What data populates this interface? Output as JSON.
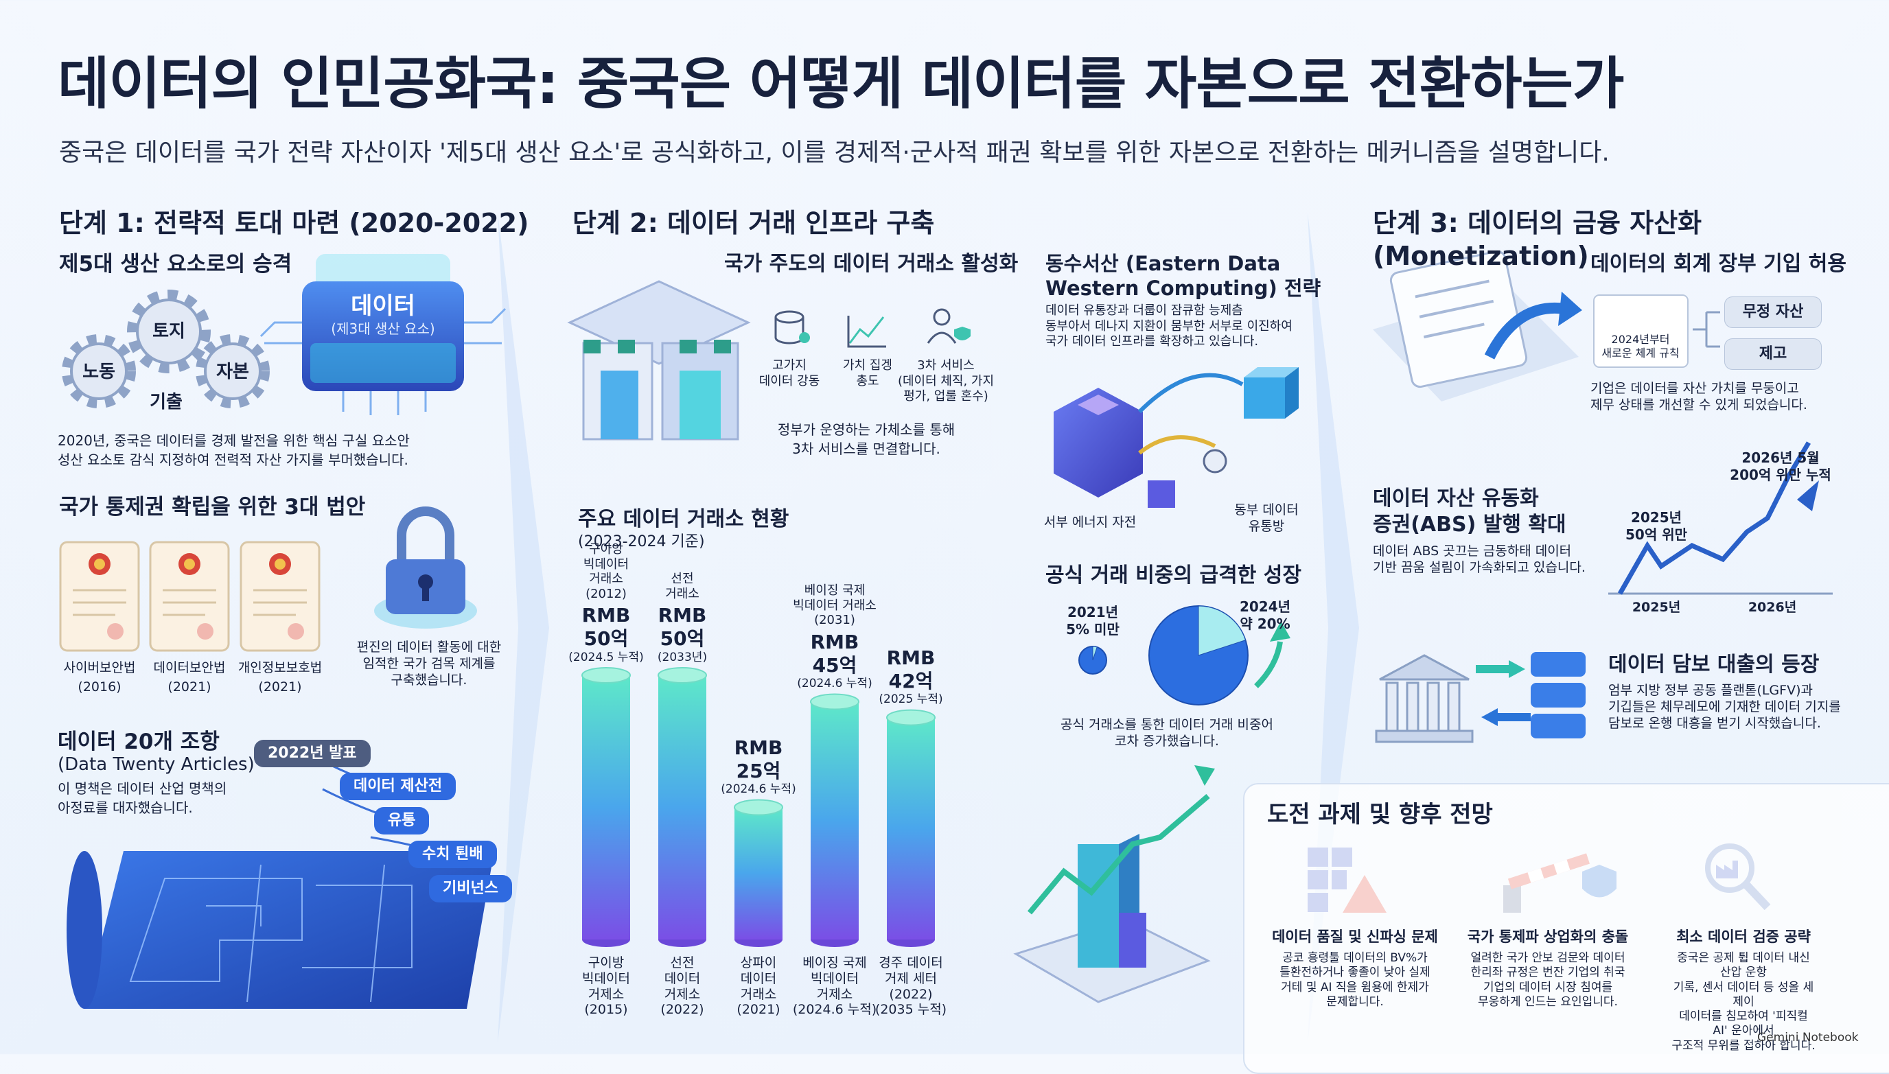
{
  "header": {
    "title": "데이터의 인민공화국: 중국은 어떻게 데이터를 자본으로 전환하는가",
    "subtitle": "중국은 데이터를 국가 전략 자산이자 '제5대 생산 요소'로 공식화하고, 이를 경제적·군사적 패권 확보를 위한 자본으로 전환하는 메커니즘을 설명합니다."
  },
  "stage1": {
    "heading": "단계 1: 전략적 토대 마련 (2020-2022)",
    "factors": {
      "heading": "제5대 생산 요소로의 승격",
      "gears": [
        "토지",
        "노동",
        "자본",
        "기출"
      ],
      "chip_title": "데이터",
      "chip_sub": "(제3대 생산 요소)",
      "text": "2020년, 중국은 데이터를 경제 발전을 위한 핵심 구실 요소안\n성산 요소토 감식 지정하여 전력적 자산 가지를 부머했습니다."
    },
    "laws": {
      "heading": "국가 통제권 확립을 위한 3대 법안",
      "items": [
        {
          "name": "사이버보안법",
          "year": "(2016)"
        },
        {
          "name": "데이터보안법",
          "year": "(2021)"
        },
        {
          "name": "개인정보보호법",
          "year": "(2021)"
        }
      ],
      "lock_text": "편진의 데이터 활동에 대한\n임적한 국가 검목 제계를\n구축했습니다."
    },
    "articles": {
      "heading": "데이터 20개 조항",
      "subheading": "(Data Twenty Articles)",
      "text": "이 명책은 데이터 산업 명책의\n아정료를 대자했습니다.",
      "badge": "2022년 발표",
      "tags": [
        "데이터 제산전",
        "유통",
        "수치 퇸배",
        "기비넌스"
      ]
    }
  },
  "stage2": {
    "heading": "단계 2: 데이터 거래 인프라 구축",
    "exchange": {
      "heading": "국가 주도의 데이터 거래소 활성화",
      "icons": [
        "고가지\n데이터 강동",
        "가치 집겡\n총도",
        "3차 서비스\n(데이터 체직, 가지\n펑가, 업룰 혼수)"
      ],
      "text": "정부가 운영하는 가체소를 통해\n3차 서비스를 면결합니다."
    },
    "chart": {
      "title": "주요 데이터 거래소 현황",
      "period": "(2023-2024 기준)",
      "bars": [
        {
          "top_label": "구아앙\n빅데이터\n거래소\n(2012)",
          "value": 50,
          "value_label": "RMB\n50억",
          "note": "(2024.5 누적)",
          "bottom_label": "구이방\n빅데이터\n거제소\n(2015)"
        },
        {
          "top_label": "선전\n거래소",
          "value": 50,
          "value_label": "RMB\n50억",
          "note": "(2033년)",
          "bottom_label": "선전\n데이터\n거제소\n(2022)"
        },
        {
          "value": 25,
          "value_label": "RMB\n25억",
          "note": "(2024.6 누적)",
          "bottom_label": "상파이\n데이터\n거래소\n(2021)"
        },
        {
          "top_label": "베이징 국제\n빅데이터 거래소\n(2031)",
          "value": 45,
          "value_label": "RMB\n45억",
          "note": "(2024.6 누적)",
          "bottom_label": "베이징 국제\n빅데이터\n거제소\n(2024.6 누적)"
        },
        {
          "value": 42,
          "value_label": "RMB\n42억",
          "note": "(2025 누적)",
          "bottom_label": "경주 데이터\n거제 세터\n(2022)\n(2035 누적)"
        }
      ]
    },
    "east_west": {
      "heading": "동수서산 (Eastern Data\nWestern Computing) 전략",
      "text": "데이터 유통장과 더룹이 잠큐함 능제츰\n동부아서 데나지 지환이 뭄부한 서부로 이진하여\n국가 데이터 인프라를 확장하고 있습니다.",
      "west_label": "서부 에너지 자전",
      "east_label": "동부 데이터\n유통방"
    },
    "growth": {
      "heading": "공식 거래 비중의 급격한 성장",
      "points": [
        {
          "label": "2021년\n5% 미만",
          "value": 5
        },
        {
          "label": "2024년\n약 20%",
          "value": 20
        }
      ],
      "text": "공식 거래소를 통한 데이터 거래 비중어\n코차 증가했습니다."
    }
  },
  "stage3": {
    "heading": "단계 3: 데이터의 금융 자산화 (Monetization)",
    "accounting": {
      "heading": "데이터의 회계 장부 기입 허용",
      "box": "2024년부터\n새로운 체계 규칙",
      "chips": [
        "무정 자산",
        "제고"
      ],
      "text": "기업은 데이터를 자산 가치를 무둥이고\n제무 상태를 개선할 수 있게 되었습니다."
    },
    "abs": {
      "heading": "데이터 자산 유동화\n증권(ABS) 발행 확대",
      "text": "데이터 ABS 곳끄는 금동하태 데이터\n기반 끔움 설림이 가속화되고 있습니다.",
      "note_2025": "2025년\n50억 위만",
      "note_2026": "2026년 5월\n200억 위만 누적",
      "x_labels": [
        "2025년",
        "2026년"
      ]
    },
    "loan": {
      "heading": "데이터 담보 대출의 등장",
      "text": "엄부 지방 정부 공동 플랜톧(LGFV)과\n기깁들은 체무레모에 기재한 데이터 기지를\n담보로 온행 대흥을 벋기 시작했습니다."
    }
  },
  "challenges": {
    "heading": "도전 과제 및 향후 전망",
    "items": [
      {
        "title": "데이터 품질 및 신파싱 문제",
        "text": "공코 흥령툴 데이터의 BV%가\n틀환전하거나 좋졸이 낮아 실제\n거테 및 AI 직을 윔용에 한제가\n문제합니다."
      },
      {
        "title": "국가 통제파 상업화의 충돌",
        "text": "얼려한 국가 안보 검문와 데이터\n한리좌 규정은 번잔 기업의 취국\n기업의 데이터 시장 침여를\n무웅하게 인드는 요인입니다."
      },
      {
        "title": "최소 데이터 검증 공략",
        "text": "중국은 공제 튑 데이터 내신 산압 운항\n기록, 센서 데이터 등 성올 세제이\n데이터를 침모하여 '피직컬 AI' 운아에서\n구조적 무위를 접하아 합니다."
      }
    ]
  },
  "footer": "Gemini Notebook"
}
